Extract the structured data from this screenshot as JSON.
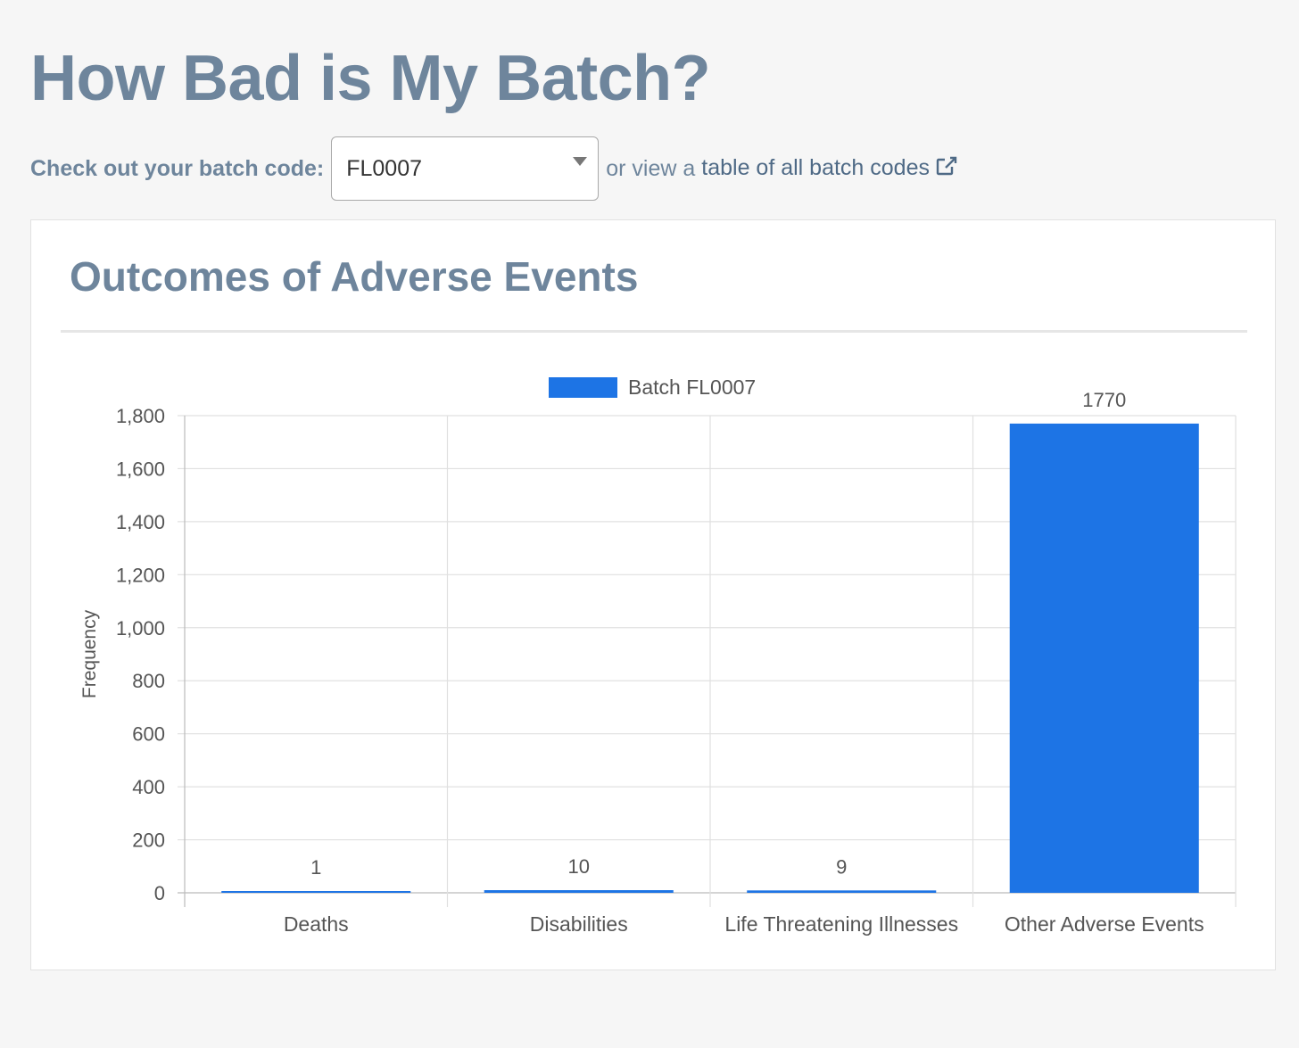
{
  "page": {
    "title": "How Bad is My Batch?",
    "batch_label": "Check out your batch code:",
    "batch_value": "FL0007",
    "or_text": "or view a",
    "table_link": "table of all batch codes",
    "external_icon": "external-link-icon"
  },
  "card": {
    "title": "Outcomes of Adverse Events"
  },
  "chart_data": {
    "type": "bar",
    "categories": [
      "Deaths",
      "Disabilities",
      "Life Threatening Illnesses",
      "Other Adverse Events"
    ],
    "series": [
      {
        "name": "Batch FL0007",
        "values": [
          1,
          10,
          9,
          1770
        ],
        "color": "#1d74e5"
      }
    ],
    "data_labels": [
      "1",
      "10",
      "9",
      "1770"
    ],
    "xlabel": "",
    "ylabel": "Frequency",
    "ylim": [
      0,
      1800
    ],
    "yticks": [
      0,
      200,
      400,
      600,
      800,
      1000,
      1200,
      1400,
      1600,
      1800
    ],
    "ytick_labels": [
      "0",
      "200",
      "400",
      "600",
      "800",
      "1,000",
      "1,200",
      "1,400",
      "1,600",
      "1,800"
    ],
    "grid": true,
    "legend": "top-center"
  }
}
